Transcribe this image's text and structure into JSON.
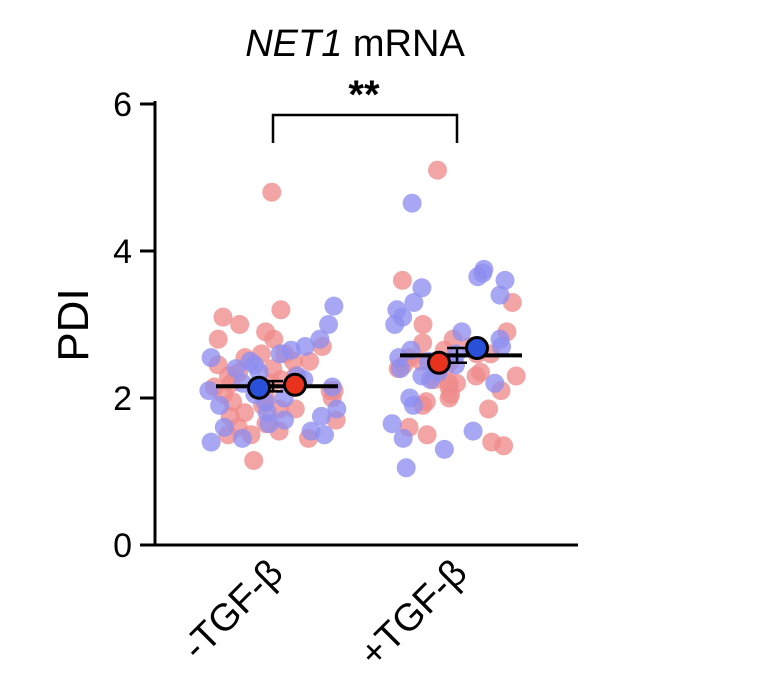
{
  "chart_data": {
    "type": "scatter",
    "title_gene": "NET1",
    "title_suffix": " mRNA",
    "ylabel": "PDI",
    "xlabel": "",
    "ylim": [
      0,
      6
    ],
    "yticks": [
      0,
      2,
      4,
      6
    ],
    "categories": [
      "-TGF-β",
      "+TGF-β"
    ],
    "significance": "**",
    "colors": {
      "red_series": "#f08a8a",
      "blue_series": "#8e8ef0",
      "red_mean": "#e8321e",
      "blue_mean": "#2a4fd8"
    },
    "series": [
      {
        "color_key": "red",
        "points": [
          [
            0,
            4.8
          ],
          [
            0,
            3.2
          ],
          [
            0,
            3.1
          ],
          [
            0,
            3.0
          ],
          [
            0,
            2.9
          ],
          [
            0,
            2.8
          ],
          [
            0,
            2.8
          ],
          [
            0,
            2.7
          ],
          [
            0,
            2.6
          ],
          [
            0,
            2.6
          ],
          [
            0,
            2.55
          ],
          [
            0,
            2.5
          ],
          [
            0,
            2.5
          ],
          [
            0,
            2.45
          ],
          [
            0,
            2.4
          ],
          [
            0,
            2.35
          ],
          [
            0,
            2.3
          ],
          [
            0,
            2.3
          ],
          [
            0,
            2.25
          ],
          [
            0,
            2.2
          ],
          [
            0,
            2.2
          ],
          [
            0,
            2.15
          ],
          [
            0,
            2.1
          ],
          [
            0,
            2.1
          ],
          [
            0,
            2.05
          ],
          [
            0,
            2.0
          ],
          [
            0,
            2.0
          ],
          [
            0,
            1.95
          ],
          [
            0,
            1.9
          ],
          [
            0,
            1.85
          ],
          [
            0,
            1.85
          ],
          [
            0,
            1.8
          ],
          [
            0,
            1.75
          ],
          [
            0,
            1.7
          ],
          [
            0,
            1.65
          ],
          [
            0,
            1.6
          ],
          [
            0,
            1.55
          ],
          [
            0,
            1.5
          ],
          [
            0,
            1.5
          ],
          [
            0,
            1.45
          ],
          [
            0,
            1.15
          ],
          [
            1,
            5.1
          ],
          [
            1,
            3.6
          ],
          [
            1,
            3.3
          ],
          [
            1,
            3.0
          ],
          [
            1,
            2.9
          ],
          [
            1,
            2.8
          ],
          [
            1,
            2.75
          ],
          [
            1,
            2.7
          ],
          [
            1,
            2.65
          ],
          [
            1,
            2.6
          ],
          [
            1,
            2.6
          ],
          [
            1,
            2.55
          ],
          [
            1,
            2.5
          ],
          [
            1,
            2.5
          ],
          [
            1,
            2.45
          ],
          [
            1,
            2.4
          ],
          [
            1,
            2.4
          ],
          [
            1,
            2.35
          ],
          [
            1,
            2.3
          ],
          [
            1,
            2.3
          ],
          [
            1,
            2.25
          ],
          [
            1,
            2.2
          ],
          [
            1,
            2.2
          ],
          [
            1,
            2.15
          ],
          [
            1,
            2.1
          ],
          [
            1,
            2.05
          ],
          [
            1,
            2.0
          ],
          [
            1,
            1.95
          ],
          [
            1,
            1.9
          ],
          [
            1,
            1.85
          ],
          [
            1,
            1.6
          ],
          [
            1,
            1.5
          ],
          [
            1,
            1.4
          ],
          [
            1,
            1.35
          ]
        ],
        "mean": [
          2.18,
          2.48
        ]
      },
      {
        "color_key": "blue",
        "points": [
          [
            0,
            3.25
          ],
          [
            0,
            3.0
          ],
          [
            0,
            2.8
          ],
          [
            0,
            2.7
          ],
          [
            0,
            2.65
          ],
          [
            0,
            2.6
          ],
          [
            0,
            2.55
          ],
          [
            0,
            2.5
          ],
          [
            0,
            2.45
          ],
          [
            0,
            2.4
          ],
          [
            0,
            2.35
          ],
          [
            0,
            2.3
          ],
          [
            0,
            2.25
          ],
          [
            0,
            2.2
          ],
          [
            0,
            2.15
          ],
          [
            0,
            2.1
          ],
          [
            0,
            2.05
          ],
          [
            0,
            2.0
          ],
          [
            0,
            1.95
          ],
          [
            0,
            1.9
          ],
          [
            0,
            1.85
          ],
          [
            0,
            1.8
          ],
          [
            0,
            1.75
          ],
          [
            0,
            1.7
          ],
          [
            0,
            1.65
          ],
          [
            0,
            1.6
          ],
          [
            0,
            1.55
          ],
          [
            0,
            1.5
          ],
          [
            0,
            1.45
          ],
          [
            0,
            1.4
          ],
          [
            1,
            4.65
          ],
          [
            1,
            3.75
          ],
          [
            1,
            3.7
          ],
          [
            1,
            3.65
          ],
          [
            1,
            3.6
          ],
          [
            1,
            3.5
          ],
          [
            1,
            3.4
          ],
          [
            1,
            3.3
          ],
          [
            1,
            3.2
          ],
          [
            1,
            3.1
          ],
          [
            1,
            3.0
          ],
          [
            1,
            2.9
          ],
          [
            1,
            2.8
          ],
          [
            1,
            2.7
          ],
          [
            1,
            2.65
          ],
          [
            1,
            2.6
          ],
          [
            1,
            2.55
          ],
          [
            1,
            2.5
          ],
          [
            1,
            2.45
          ],
          [
            1,
            2.4
          ],
          [
            1,
            2.35
          ],
          [
            1,
            2.3
          ],
          [
            1,
            2.25
          ],
          [
            1,
            2.2
          ],
          [
            1,
            2.0
          ],
          [
            1,
            1.9
          ],
          [
            1,
            1.65
          ],
          [
            1,
            1.55
          ],
          [
            1,
            1.45
          ],
          [
            1,
            1.3
          ],
          [
            1,
            1.05
          ]
        ],
        "mean": [
          2.14,
          2.68
        ]
      }
    ],
    "group_mean": [
      2.16,
      2.58
    ],
    "group_sem": [
      0.07,
      0.1
    ]
  }
}
